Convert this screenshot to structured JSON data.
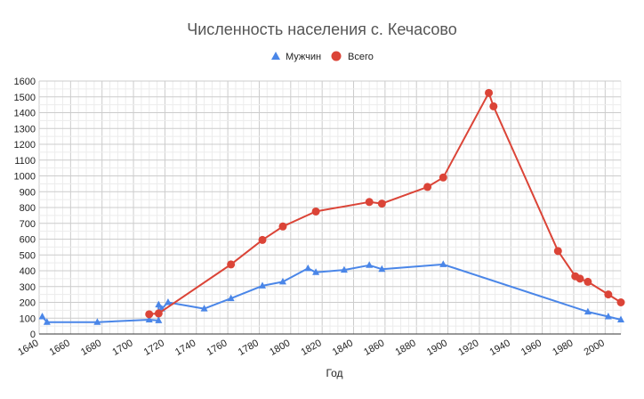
{
  "chart_data": {
    "type": "line",
    "title": "Численность населения с. Кечасово",
    "xlabel": "Год",
    "ylabel": "",
    "xlim": [
      1640,
      2010
    ],
    "ylim": [
      0,
      1600
    ],
    "x_ticks": [
      1640,
      1660,
      1680,
      1700,
      1720,
      1740,
      1760,
      1780,
      1800,
      1820,
      1840,
      1860,
      1880,
      1900,
      1920,
      1940,
      1960,
      1980,
      2000
    ],
    "y_ticks": [
      0,
      100,
      200,
      300,
      400,
      500,
      600,
      700,
      800,
      900,
      1000,
      1100,
      1200,
      1300,
      1400,
      1500,
      1600
    ],
    "grid": true,
    "legend_position": "top",
    "series": [
      {
        "name": "Мужчин",
        "color": "#4a86e8",
        "marker": "triangle",
        "points": [
          [
            1642,
            110
          ],
          [
            1645,
            75
          ],
          [
            1677,
            75
          ],
          [
            1710,
            90
          ],
          [
            1716,
            85
          ],
          [
            1716,
            185
          ],
          [
            1718,
            160
          ],
          [
            1722,
            200
          ],
          [
            1745,
            160
          ],
          [
            1762,
            225
          ],
          [
            1782,
            305
          ],
          [
            1795,
            330
          ],
          [
            1811,
            415
          ],
          [
            1816,
            390
          ],
          [
            1834,
            405
          ],
          [
            1850,
            435
          ],
          [
            1858,
            410
          ],
          [
            1897,
            440
          ],
          [
            1989,
            140
          ],
          [
            2002,
            110
          ],
          [
            2010,
            90
          ]
        ]
      },
      {
        "name": "Всего",
        "color": "#db4437",
        "marker": "circle",
        "points": [
          [
            1710,
            125
          ],
          [
            1716,
            130
          ],
          [
            1762,
            440
          ],
          [
            1782,
            595
          ],
          [
            1795,
            680
          ],
          [
            1816,
            775
          ],
          [
            1850,
            835
          ],
          [
            1858,
            825
          ],
          [
            1887,
            930
          ],
          [
            1897,
            990
          ],
          [
            1926,
            1525
          ],
          [
            1929,
            1440
          ],
          [
            1970,
            525
          ],
          [
            1981,
            365
          ],
          [
            1984,
            350
          ],
          [
            1989,
            330
          ],
          [
            2002,
            250
          ],
          [
            2010,
            200
          ]
        ]
      }
    ]
  }
}
